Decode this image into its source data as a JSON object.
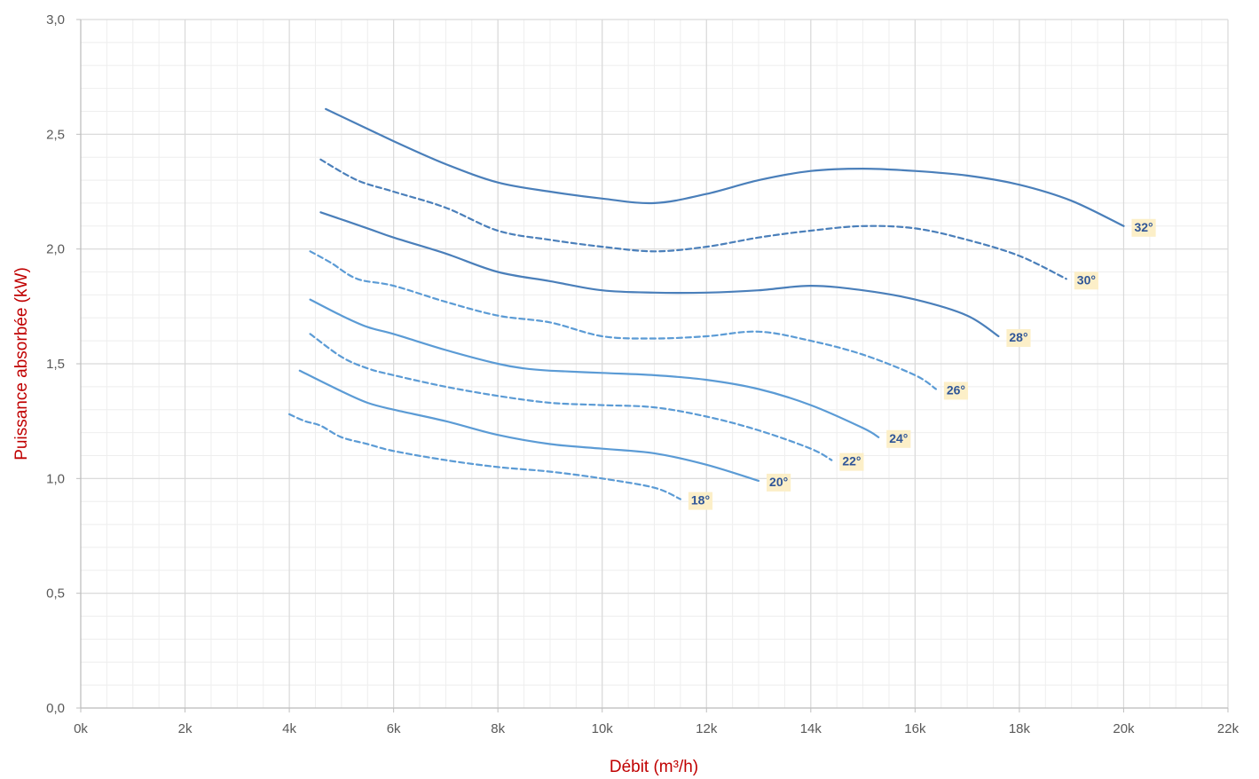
{
  "chart_data": {
    "type": "line",
    "xlabel": "Débit (m³/h)",
    "ylabel": "Puissance absorbée (kW)",
    "xlim": [
      0,
      22000
    ],
    "ylim": [
      0,
      3
    ],
    "x_ticks": [
      0,
      2000,
      4000,
      6000,
      8000,
      10000,
      12000,
      14000,
      16000,
      18000,
      20000,
      22000
    ],
    "x_tick_labels": [
      "0k",
      "2k",
      "4k",
      "6k",
      "8k",
      "10k",
      "12k",
      "14k",
      "16k",
      "18k",
      "20k",
      "22k"
    ],
    "y_ticks": [
      0,
      0.5,
      1,
      1.5,
      2,
      2.5,
      3
    ],
    "y_tick_labels": [
      "0,0",
      "0,5",
      "1,0",
      "1,5",
      "2,0",
      "2,5",
      "3,0"
    ],
    "grid": true,
    "legend": "none",
    "series": [
      {
        "name": "18°",
        "style": "dashed",
        "color": "#5b9bd5",
        "x": [
          4000,
          4300,
          4600,
          5000,
          5500,
          6000,
          7000,
          8000,
          9000,
          10000,
          11000,
          11500
        ],
        "y": [
          1.28,
          1.25,
          1.23,
          1.18,
          1.15,
          1.12,
          1.08,
          1.05,
          1.03,
          1.0,
          0.96,
          0.91
        ]
      },
      {
        "name": "20°",
        "style": "solid",
        "color": "#5b9bd5",
        "x": [
          4200,
          5000,
          5500,
          6000,
          7000,
          8000,
          9000,
          10000,
          11000,
          12000,
          13000
        ],
        "y": [
          1.47,
          1.38,
          1.33,
          1.3,
          1.25,
          1.19,
          1.15,
          1.13,
          1.11,
          1.06,
          0.99
        ]
      },
      {
        "name": "22°",
        "style": "dashed",
        "color": "#5b9bd5",
        "x": [
          4400,
          5000,
          5500,
          6000,
          7000,
          8000,
          9000,
          10000,
          11000,
          12000,
          13000,
          14000,
          14400
        ],
        "y": [
          1.63,
          1.53,
          1.48,
          1.45,
          1.4,
          1.36,
          1.33,
          1.32,
          1.31,
          1.27,
          1.21,
          1.13,
          1.08
        ]
      },
      {
        "name": "24°",
        "style": "solid",
        "color": "#5b9bd5",
        "x": [
          4400,
          5000,
          5500,
          6000,
          7000,
          8000,
          8500,
          9000,
          10000,
          11000,
          12000,
          13000,
          14000,
          15000,
          15300
        ],
        "y": [
          1.78,
          1.71,
          1.66,
          1.63,
          1.56,
          1.5,
          1.48,
          1.47,
          1.46,
          1.45,
          1.43,
          1.39,
          1.32,
          1.22,
          1.18
        ]
      },
      {
        "name": "26°",
        "style": "dashed",
        "color": "#5b9bd5",
        "x": [
          4400,
          4800,
          5300,
          6000,
          7000,
          8000,
          9000,
          10000,
          11000,
          12000,
          13000,
          14000,
          15000,
          16000,
          16400
        ],
        "y": [
          1.99,
          1.94,
          1.87,
          1.84,
          1.77,
          1.71,
          1.68,
          1.62,
          1.61,
          1.62,
          1.64,
          1.6,
          1.54,
          1.45,
          1.39
        ]
      },
      {
        "name": "28°",
        "style": "solid",
        "color": "#4a7fba",
        "x": [
          4600,
          5500,
          6000,
          7000,
          8000,
          9000,
          10000,
          11000,
          12000,
          13000,
          14000,
          15000,
          16000,
          17000,
          17600
        ],
        "y": [
          2.16,
          2.09,
          2.05,
          1.98,
          1.9,
          1.86,
          1.82,
          1.81,
          1.81,
          1.82,
          1.84,
          1.82,
          1.78,
          1.71,
          1.62
        ]
      },
      {
        "name": "30°",
        "style": "dashed",
        "color": "#4a7fba",
        "x": [
          4600,
          5300,
          6000,
          7000,
          8000,
          9000,
          10000,
          11000,
          12000,
          13000,
          14000,
          15000,
          16000,
          17000,
          18000,
          18900
        ],
        "y": [
          2.39,
          2.3,
          2.25,
          2.18,
          2.08,
          2.04,
          2.01,
          1.99,
          2.01,
          2.05,
          2.08,
          2.1,
          2.09,
          2.04,
          1.97,
          1.87
        ]
      },
      {
        "name": "32°",
        "style": "solid",
        "color": "#4a7fba",
        "x": [
          4700,
          6000,
          7000,
          8000,
          9000,
          10000,
          11000,
          12000,
          13000,
          14000,
          15000,
          16000,
          17000,
          18000,
          19000,
          20000
        ],
        "y": [
          2.61,
          2.47,
          2.37,
          2.29,
          2.25,
          2.22,
          2.2,
          2.24,
          2.3,
          2.34,
          2.35,
          2.34,
          2.32,
          2.28,
          2.21,
          2.1
        ]
      }
    ]
  }
}
